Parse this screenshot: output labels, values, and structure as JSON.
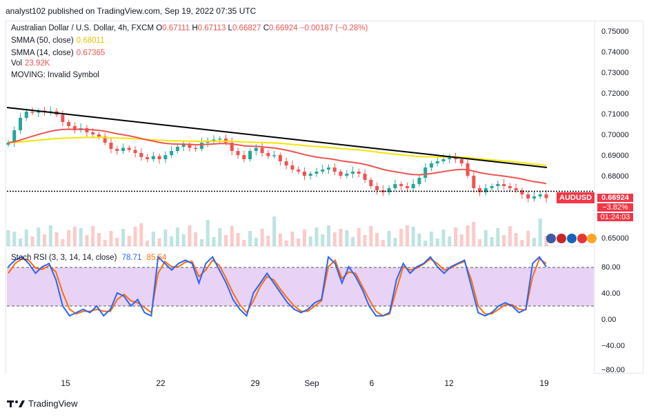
{
  "header": {
    "publisher_line": "analyst102 published on TradingView.com, Sep 19, 2022 07:35 UTC"
  },
  "legend": {
    "title": "Australian Dollar / U.S. Dollar, 4h, FXCM",
    "o_label": "O",
    "o": "0.67111",
    "h_label": "H",
    "h": "0.67113",
    "l_label": "L",
    "l": "0.66827",
    "c_label": "C",
    "c": "0.66924",
    "change": "−0.00187 (−0.28%)",
    "smma50_label": "SMMA (50, close)",
    "smma50": "0.68011",
    "smma14_label": "SMMA (14, close)",
    "smma14": "0.67365",
    "vol_label": "Vol",
    "vol": "23.92K",
    "moving_label": "MOVING: Invalid Symbol"
  },
  "rsi_legend": {
    "label": "Stoch RSI (3, 3, 14, 14, close)",
    "k": "78.71",
    "d": "85.54"
  },
  "tags": {
    "symbol": "AUDUSD",
    "price": "0.66924",
    "pct": "−3.82%",
    "countdown": "01:24:03"
  },
  "footer": {
    "brand": "TradingView"
  },
  "colors": {
    "up": "#26a69a",
    "down": "#ef5350",
    "smma50": "#f5e400",
    "smma14": "#ef5350",
    "trend": "#000000",
    "rsi_k": "#2962ff",
    "rsi_d": "#ff6d00",
    "rsi_band": "#e1bee7"
  },
  "chart_data": [
    {
      "type": "candlestick",
      "title": "Australian Dollar / U.S. Dollar, 4h, FXCM",
      "x_tick_labels": [
        "15",
        "22",
        "29",
        "Sep",
        "6",
        "12",
        "19"
      ],
      "y_tick_labels": [
        "0.75000",
        "0.74000",
        "0.73000",
        "0.72000",
        "0.71000",
        "0.70000",
        "0.69000",
        "0.68000",
        "0.65000"
      ],
      "ylim": [
        0.6452,
        0.7546
      ],
      "close_series": [
        0.696,
        0.702,
        0.708,
        0.711,
        0.7105,
        0.7115,
        0.7108,
        0.7112,
        0.7095,
        0.706,
        0.704,
        0.702,
        0.703,
        0.701,
        0.7,
        0.699,
        0.696,
        0.693,
        0.692,
        0.6935,
        0.6925,
        0.691,
        0.689,
        0.688,
        0.6895,
        0.688,
        0.69,
        0.692,
        0.694,
        0.695,
        0.6935,
        0.693,
        0.696,
        0.697,
        0.6975,
        0.698,
        0.696,
        0.692,
        0.69,
        0.688,
        0.692,
        0.6935,
        0.691,
        0.6895,
        0.69,
        0.687,
        0.685,
        0.683,
        0.682,
        0.68,
        0.681,
        0.682,
        0.683,
        0.684,
        0.682,
        0.68,
        0.681,
        0.682,
        0.681,
        0.678,
        0.675,
        0.673,
        0.672,
        0.674,
        0.676,
        0.675,
        0.674,
        0.676,
        0.679,
        0.684,
        0.686,
        0.687,
        0.688,
        0.689,
        0.688,
        0.686,
        0.68,
        0.674,
        0.672,
        0.674,
        0.675,
        0.676,
        0.675,
        0.674,
        0.673,
        0.671,
        0.669,
        0.67,
        0.671,
        0.6692
      ],
      "smma50": {
        "name": "SMMA (50, close)",
        "start": 0.696,
        "end": 0.68011
      },
      "smma14": {
        "name": "SMMA (14, close)",
        "end": 0.67365
      },
      "trendline": {
        "from": 0.713,
        "to": 0.684
      },
      "support_level": 0.6725,
      "last_price": 0.66924
    },
    {
      "type": "line",
      "title": "Stoch RSI (3, 3, 14, 14, close)",
      "y_tick_labels": [
        "80.00",
        "40.00",
        "0.00",
        "−40.00",
        "−80.00"
      ],
      "ylim": [
        -80,
        105
      ],
      "bands": [
        80,
        20
      ],
      "series": [
        {
          "name": "K",
          "values": [
            80,
            90,
            95,
            85,
            70,
            80,
            85,
            60,
            20,
            5,
            10,
            15,
            10,
            20,
            5,
            15,
            40,
            35,
            20,
            30,
            10,
            5,
            95,
            85,
            75,
            85,
            90,
            85,
            55,
            85,
            95,
            75,
            55,
            30,
            15,
            5,
            40,
            55,
            70,
            55,
            40,
            25,
            15,
            10,
            15,
            25,
            30,
            95,
            85,
            55,
            80,
            65,
            45,
            20,
            5,
            5,
            10,
            60,
            85,
            70,
            80,
            85,
            95,
            80,
            70,
            80,
            85,
            90,
            50,
            10,
            5,
            10,
            20,
            25,
            20,
            10,
            15,
            85,
            95,
            80
          ]
        },
        {
          "name": "D",
          "values": [
            70,
            85,
            92,
            90,
            78,
            76,
            82,
            72,
            40,
            15,
            8,
            12,
            12,
            15,
            12,
            12,
            30,
            38,
            28,
            25,
            18,
            10,
            70,
            88,
            80,
            80,
            87,
            88,
            65,
            75,
            90,
            82,
            62,
            40,
            22,
            10,
            28,
            50,
            65,
            60,
            45,
            32,
            20,
            12,
            12,
            20,
            28,
            80,
            90,
            62,
            72,
            70,
            50,
            30,
            12,
            5,
            8,
            45,
            80,
            75,
            78,
            84,
            92,
            85,
            75,
            78,
            84,
            88,
            60,
            20,
            8,
            8,
            15,
            22,
            22,
            15,
            14,
            65,
            92,
            85
          ]
        }
      ]
    }
  ]
}
